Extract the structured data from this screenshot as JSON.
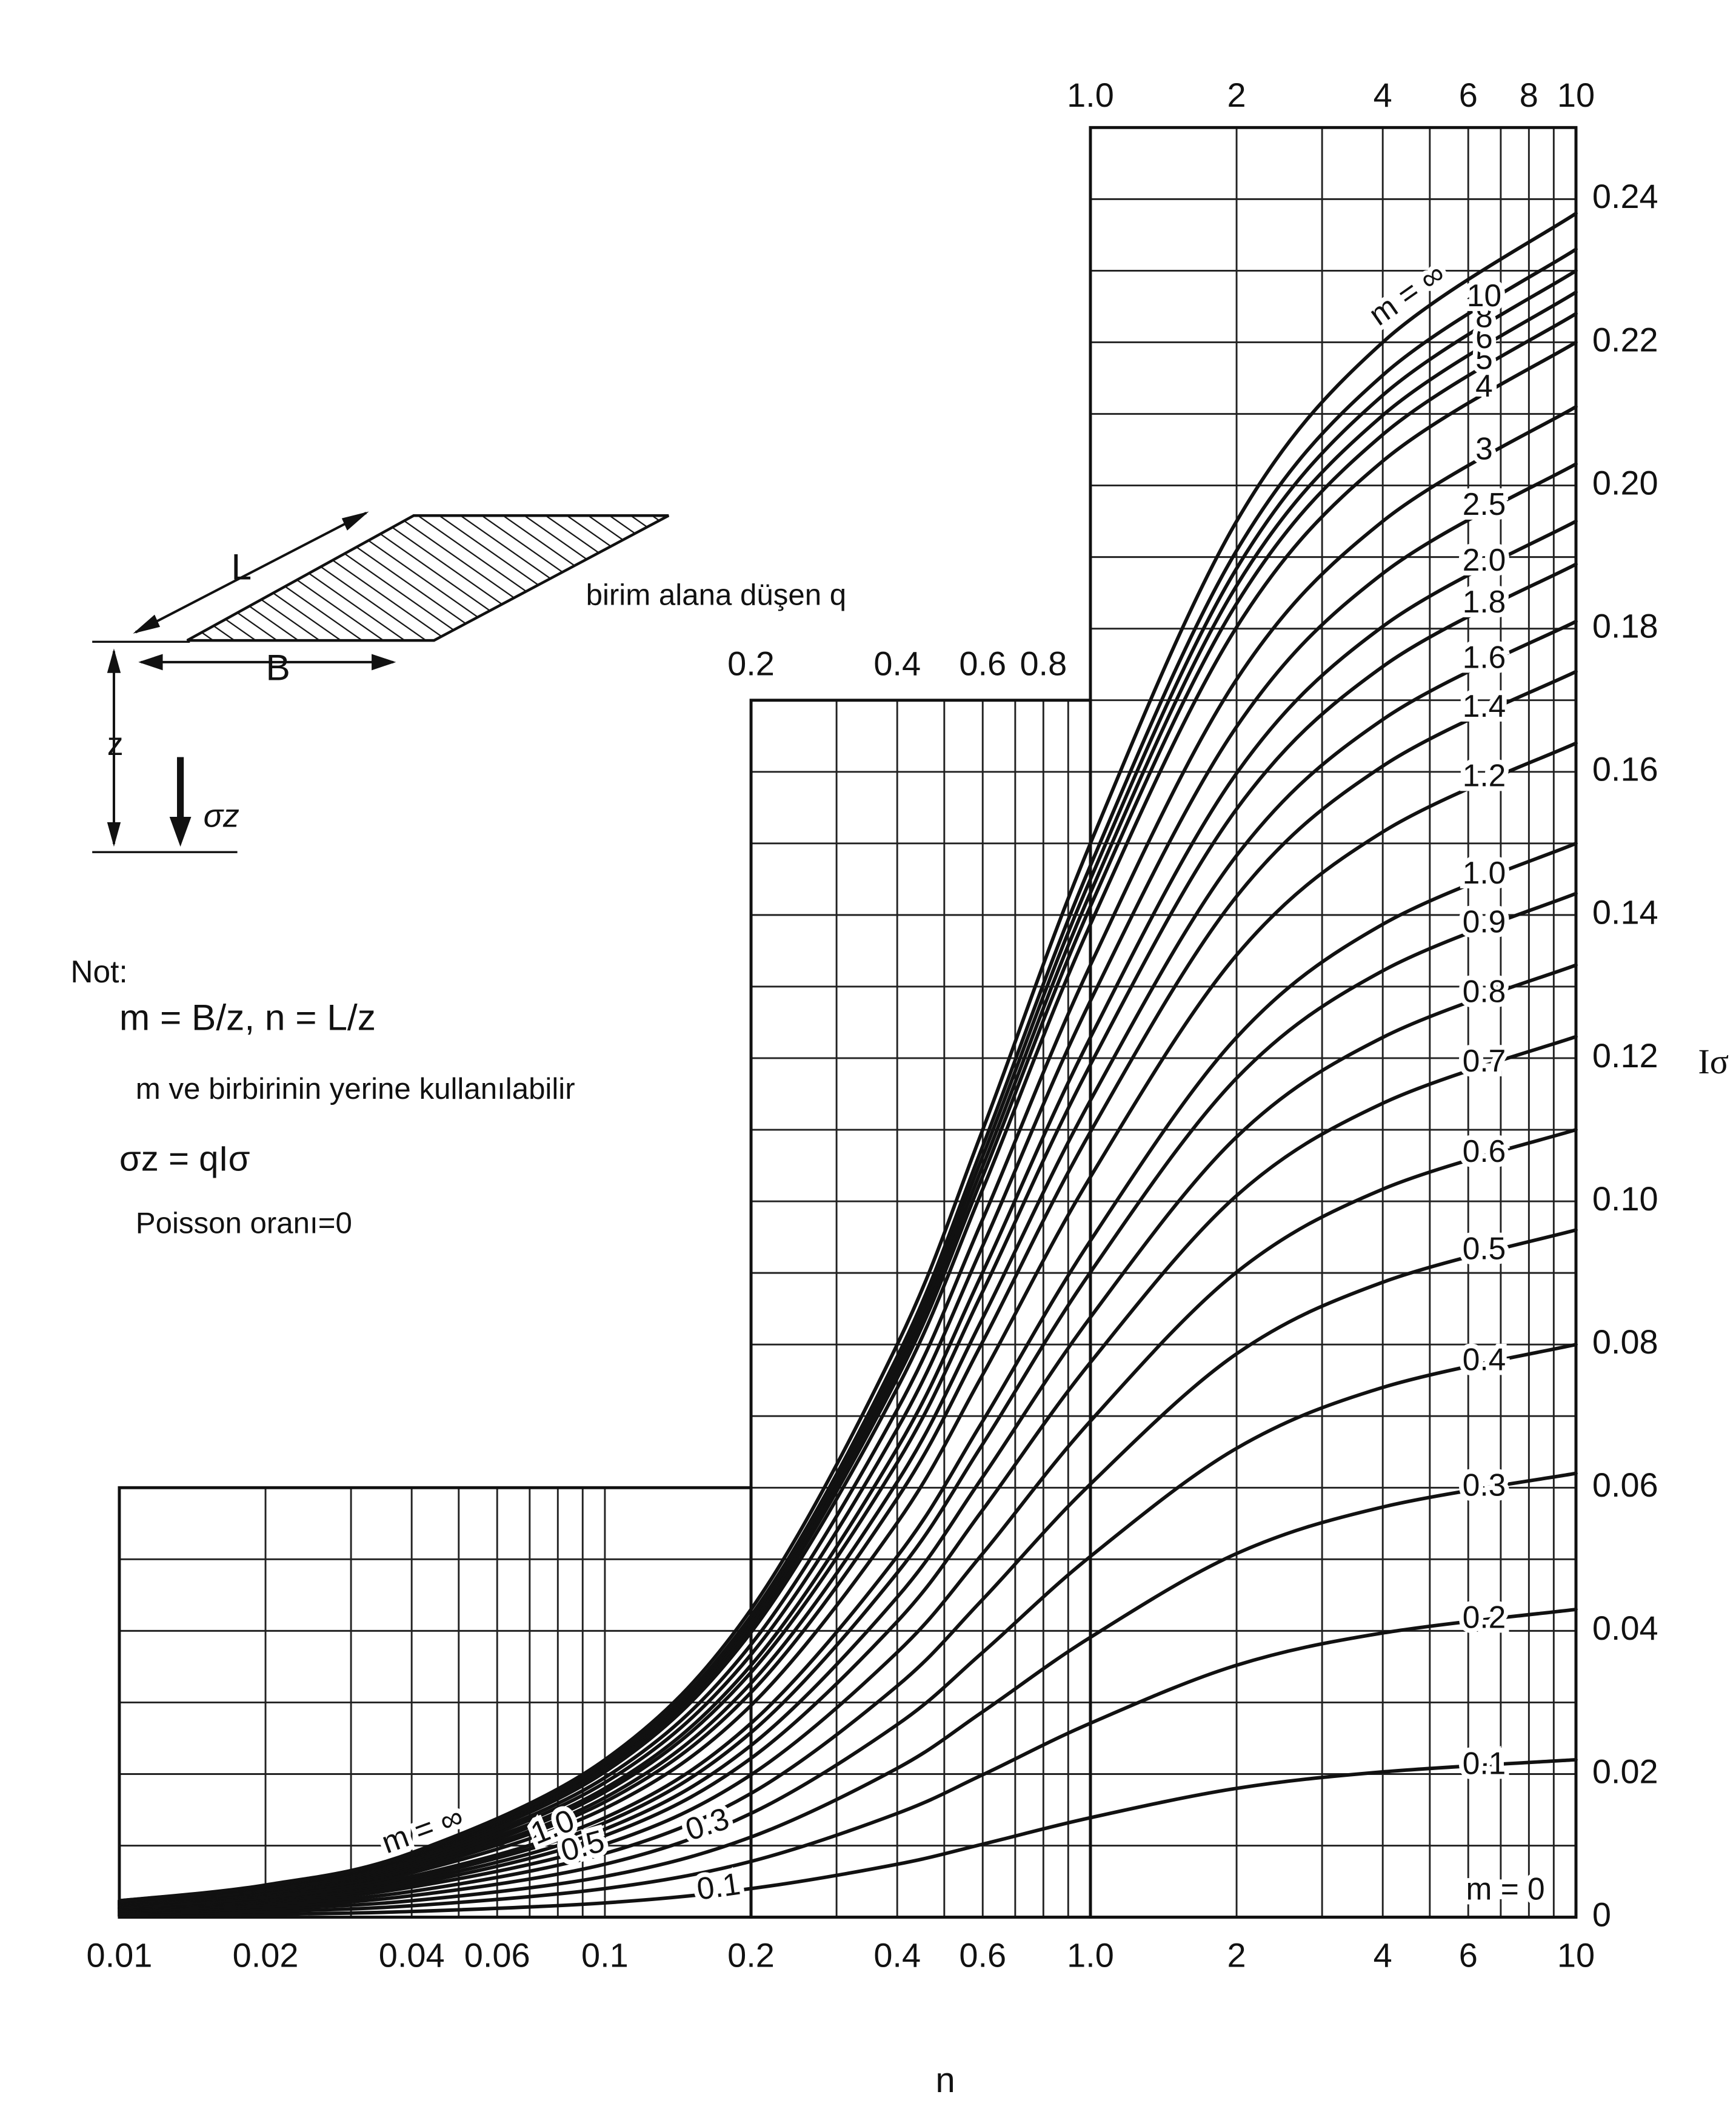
{
  "chart_data": {
    "type": "line",
    "xscale": "log",
    "xlim": [
      0.01,
      10
    ],
    "ylim": [
      0,
      0.25
    ],
    "xlabel": "n",
    "ylabel": "Iσ",
    "x": [
      0.01,
      0.02,
      0.04,
      0.1,
      0.2,
      0.4,
      0.6,
      1,
      2,
      4,
      10
    ],
    "series": [
      {
        "name": "0.1",
        "color": "#111",
        "values": [
          0.0002,
          0.0004,
          0.0008,
          0.002,
          0.004,
          0.0074,
          0.0102,
          0.0139,
          0.018,
          0.0203,
          0.022
        ]
      },
      {
        "name": "0.2",
        "color": "#111",
        "values": [
          0.0004,
          0.0008,
          0.0016,
          0.004,
          0.0078,
          0.0145,
          0.0199,
          0.0271,
          0.0352,
          0.0397,
          0.043
        ]
      },
      {
        "name": "0.3",
        "color": "#111",
        "values": [
          0.0006,
          0.0012,
          0.0023,
          0.0057,
          0.0112,
          0.0208,
          0.0287,
          0.0391,
          0.0508,
          0.0573,
          0.062
        ]
      },
      {
        "name": "0.4",
        "color": "#111",
        "values": [
          0.0008,
          0.0015,
          0.003,
          0.0074,
          0.0145,
          0.0269,
          0.037,
          0.0504,
          0.0655,
          0.074,
          0.08
        ]
      },
      {
        "name": "0.5",
        "color": "#111",
        "values": [
          0.0009,
          0.0018,
          0.0036,
          0.0089,
          0.0173,
          0.0323,
          0.0444,
          0.0605,
          0.0787,
          0.0887,
          0.096
        ]
      },
      {
        "name": "0.6",
        "color": "#111",
        "values": [
          0.0011,
          0.0021,
          0.0042,
          0.0102,
          0.0199,
          0.037,
          0.0508,
          0.0693,
          0.0901,
          0.1017,
          0.11
        ]
      },
      {
        "name": "0.7",
        "color": "#111",
        "values": [
          0.0012,
          0.0023,
          0.0046,
          0.0114,
          0.0222,
          0.0413,
          0.0569,
          0.0775,
          0.1008,
          0.1137,
          0.123
        ]
      },
      {
        "name": "0.8",
        "color": "#111",
        "values": [
          0.0013,
          0.0025,
          0.005,
          0.0123,
          0.024,
          0.0447,
          0.0615,
          0.0838,
          0.109,
          0.1229,
          0.133
        ]
      },
      {
        "name": "0.9",
        "color": "#111",
        "values": [
          0.0014,
          0.0027,
          0.0054,
          0.0132,
          0.0258,
          0.0481,
          0.0661,
          0.0901,
          0.1172,
          0.1322,
          0.143
        ]
      },
      {
        "name": "1.0",
        "color": "#111",
        "values": [
          0.0014,
          0.0028,
          0.0057,
          0.0139,
          0.0271,
          0.0504,
          0.0693,
          0.0945,
          0.1229,
          0.1387,
          0.15
        ]
      },
      {
        "name": "1.2",
        "color": "#111",
        "values": [
          0.0016,
          0.0031,
          0.0062,
          0.0152,
          0.0296,
          0.0551,
          0.0758,
          0.1034,
          0.1344,
          0.1516,
          0.164
        ]
      },
      {
        "name": "1.4",
        "color": "#111",
        "values": [
          0.0017,
          0.0033,
          0.0066,
          0.0161,
          0.0314,
          0.0585,
          0.0804,
          0.1097,
          0.1426,
          0.1608,
          0.174
        ]
      },
      {
        "name": "1.6",
        "color": "#111",
        "values": [
          0.0017,
          0.0034,
          0.0068,
          0.0167,
          0.0327,
          0.0608,
          0.0837,
          0.1141,
          0.1483,
          0.1673,
          0.181
        ]
      },
      {
        "name": "1.8",
        "color": "#111",
        "values": [
          0.0018,
          0.0036,
          0.0071,
          0.0175,
          0.0342,
          0.0635,
          0.0874,
          0.1191,
          0.1548,
          0.1747,
          0.189
        ]
      },
      {
        "name": "2.0",
        "color": "#111",
        "values": [
          0.0019,
          0.0037,
          0.0074,
          0.018,
          0.0352,
          0.0655,
          0.0901,
          0.1229,
          0.1598,
          0.1803,
          0.195
        ]
      },
      {
        "name": "2.5",
        "color": "#111",
        "values": [
          0.002,
          0.0038,
          0.0077,
          0.0188,
          0.0367,
          0.0682,
          0.0938,
          0.128,
          0.1663,
          0.1877,
          0.203
        ]
      },
      {
        "name": "3",
        "color": "#111",
        "values": [
          0.002,
          0.004,
          0.008,
          0.0195,
          0.0381,
          0.0709,
          0.0975,
          0.133,
          0.1729,
          0.195,
          0.211
        ]
      },
      {
        "name": "4",
        "color": "#111",
        "values": [
          0.0021,
          0.0042,
          0.0083,
          0.0203,
          0.0398,
          0.0739,
          0.1017,
          0.1387,
          0.1802,
          0.2034,
          0.22
        ]
      },
      {
        "name": "5",
        "color": "#111",
        "values": [
          0.0022,
          0.0042,
          0.0085,
          0.0207,
          0.0405,
          0.0753,
          0.1035,
          0.1412,
          0.1835,
          0.2071,
          0.224
        ]
      },
      {
        "name": "6",
        "color": "#111",
        "values": [
          0.0022,
          0.0043,
          0.0086,
          0.021,
          0.041,
          0.0763,
          0.1049,
          0.1431,
          0.186,
          0.2098,
          0.227
        ]
      },
      {
        "name": "8",
        "color": "#111",
        "values": [
          0.0022,
          0.0043,
          0.0087,
          0.0213,
          0.0416,
          0.0773,
          0.1063,
          0.145,
          0.1884,
          0.2126,
          0.23
        ]
      },
      {
        "name": "10",
        "color": "#111",
        "values": [
          0.0023,
          0.0044,
          0.0088,
          0.0215,
          0.0421,
          0.0783,
          0.1077,
          0.1469,
          0.1909,
          0.2154,
          0.233
        ]
      },
      {
        "name": "m = ∞",
        "color": "#111",
        "values": [
          0.0023,
          0.0045,
          0.009,
          0.022,
          0.043,
          0.08,
          0.11,
          0.15,
          0.195,
          0.22,
          0.238
        ]
      }
    ],
    "xticks": [
      0.01,
      0.02,
      0.04,
      0.06,
      0.1,
      0.2,
      0.4,
      0.6,
      {
        "value": 1,
        "label": "1.0"
      },
      2,
      4,
      6,
      10
    ],
    "xticks_top_middle": [
      0.2,
      0.4,
      0.6,
      0.8
    ],
    "xticks_top_upper": [
      {
        "value": 1,
        "label": "1.0"
      },
      2,
      4,
      6,
      8,
      10
    ],
    "yticks": [
      0,
      0.02,
      0.04,
      0.06,
      0.08,
      {
        "value": 0.1,
        "label": "0.10"
      },
      0.12,
      0.14,
      0.16,
      0.18,
      {
        "value": 0.2,
        "label": "0.20"
      },
      0.22,
      0.24
    ],
    "grid_x": [
      0.01,
      0.02,
      0.03,
      0.04,
      0.05,
      0.06,
      0.07,
      0.08,
      0.09,
      0.1,
      0.2,
      0.3,
      0.4,
      0.5,
      0.6,
      0.7,
      0.8,
      0.9,
      1,
      2,
      3,
      4,
      5,
      6,
      7,
      8,
      9,
      10
    ],
    "grid_y": [
      0,
      0.01,
      0.02,
      0.03,
      0.04,
      0.05,
      0.06,
      0.07,
      0.08,
      0.09,
      0.1,
      0.11,
      0.12,
      0.13,
      0.14,
      0.15,
      0.16,
      0.17,
      0.18,
      0.19,
      0.2,
      0.21,
      0.22,
      0.23,
      0.24,
      0.25
    ],
    "grid_regions": [
      {
        "xlim": [
          0.01,
          0.2
        ],
        "ylim": [
          0,
          0.06
        ]
      },
      {
        "xlim": [
          0.2,
          1
        ],
        "ylim": [
          0,
          0.17
        ]
      },
      {
        "xlim": [
          1,
          10
        ],
        "ylim": [
          0,
          0.25
        ]
      }
    ],
    "annotations": [
      "m = 0"
    ],
    "diagram": {
      "length": "L",
      "width": "B",
      "depth": "z",
      "stress": "σz",
      "load": "birim alana düşen q"
    },
    "notes": {
      "heading": "Not:",
      "definition": "m = B/z, n = L/z",
      "swap": "m ve  birbirinin yerine kullanılabilir",
      "formula": "σz = qIσ",
      "poisson": "Poisson oranı=0"
    }
  }
}
